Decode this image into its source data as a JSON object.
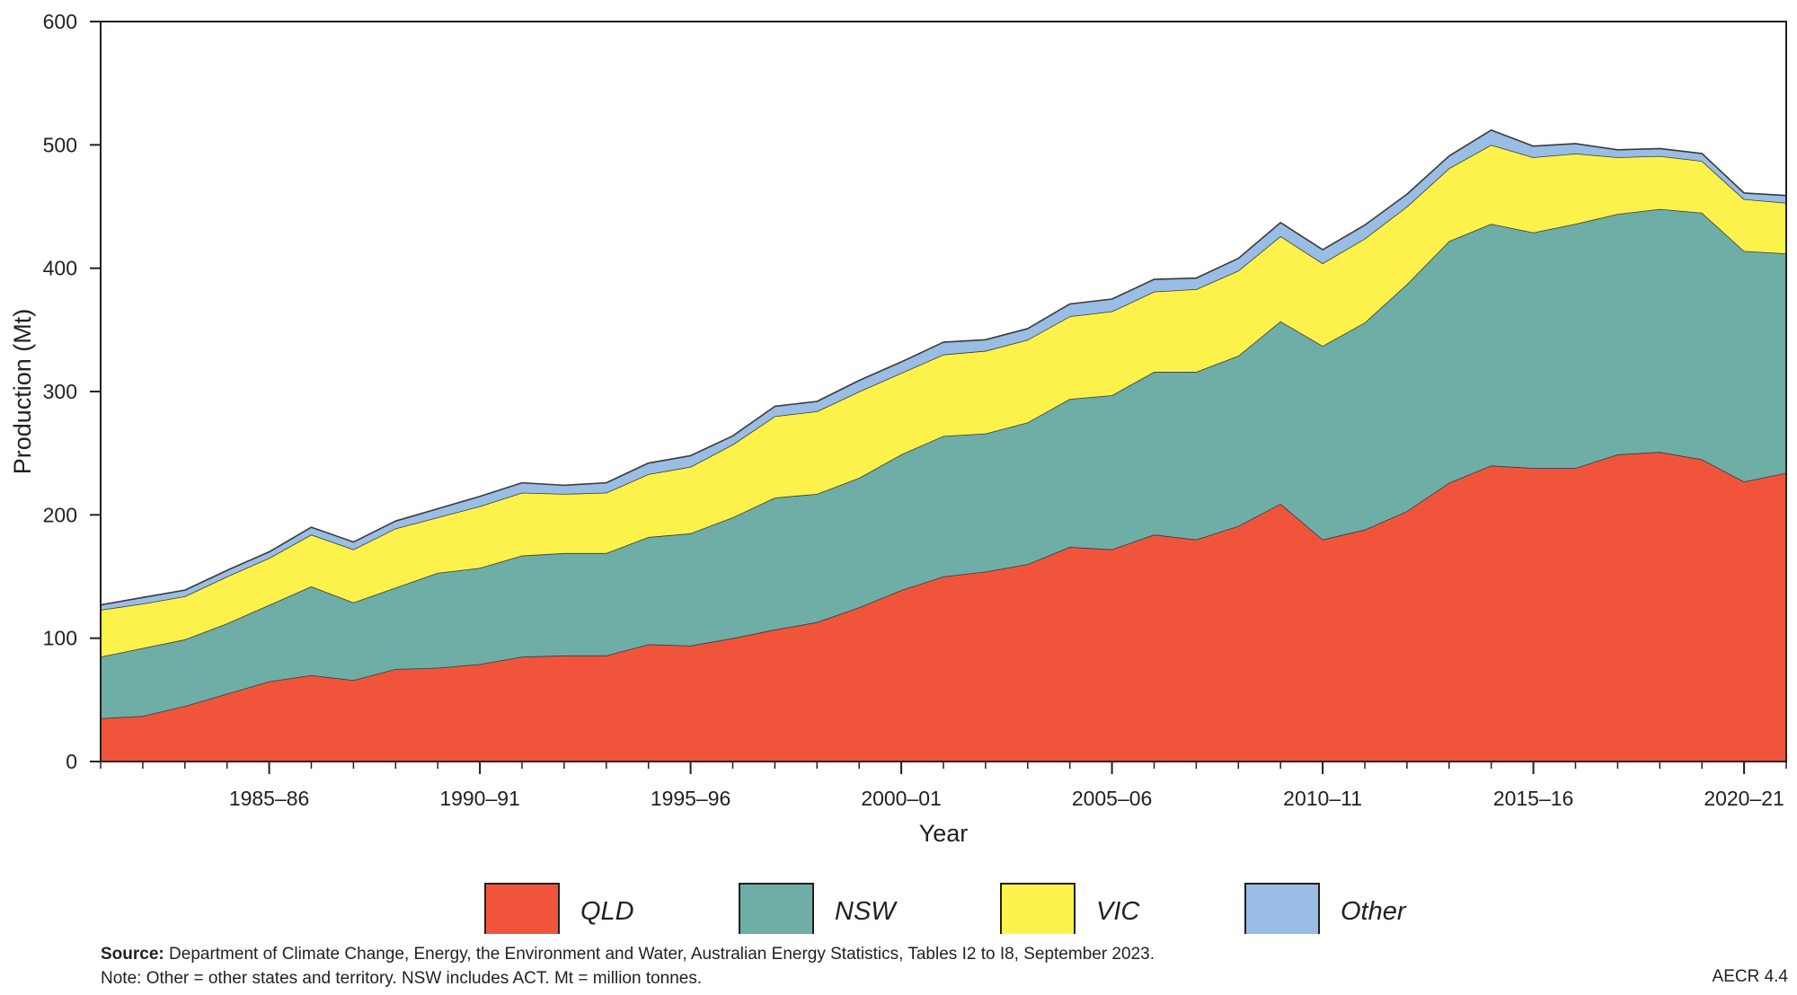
{
  "chart_data": {
    "type": "area",
    "stacked": true,
    "xlabel": "Year",
    "ylabel": "Production (Mt)",
    "ylim": [
      0,
      600
    ],
    "yticks": [
      0,
      100,
      200,
      300,
      400,
      500,
      600
    ],
    "years": [
      "1981–82",
      "1982–83",
      "1983–84",
      "1984–85",
      "1985–86",
      "1986–87",
      "1987–88",
      "1988–89",
      "1989–90",
      "1990–91",
      "1991–92",
      "1992–93",
      "1993–94",
      "1994–95",
      "1995–96",
      "1996–97",
      "1997–98",
      "1998–99",
      "1999–00",
      "2000–01",
      "2001–02",
      "2002–03",
      "2003–04",
      "2004–05",
      "2005–06",
      "2006–07",
      "2007–08",
      "2008–09",
      "2009–10",
      "2010–11",
      "2011–12",
      "2012–13",
      "2013–14",
      "2014–15",
      "2015–16",
      "2016–17",
      "2017–18",
      "2018–19",
      "2019–20",
      "2020–21",
      "2021–22"
    ],
    "xtick_labels": [
      "1985–86",
      "1990–91",
      "1995–96",
      "2000–01",
      "2005–06",
      "2010–11",
      "2015–16",
      "2020–21"
    ],
    "series": [
      {
        "name": "QLD",
        "color": "#f0553b",
        "values": [
          35,
          37,
          45,
          55,
          65,
          70,
          66,
          75,
          76,
          79,
          85,
          86,
          86,
          95,
          94,
          100,
          107,
          113,
          125,
          139,
          150,
          154,
          160,
          174,
          172,
          184,
          180,
          191,
          209,
          180,
          188,
          203,
          226,
          240,
          238,
          238,
          249,
          251,
          245,
          227,
          234
        ]
      },
      {
        "name": "NSW",
        "color": "#6fada7",
        "values": [
          50,
          55,
          54,
          57,
          62,
          72,
          63,
          66,
          77,
          78,
          82,
          83,
          83,
          87,
          91,
          98,
          107,
          104,
          105,
          110,
          114,
          112,
          115,
          120,
          125,
          132,
          136,
          138,
          148,
          157,
          168,
          184,
          196,
          196,
          191,
          198,
          195,
          197,
          200,
          187,
          178
        ]
      },
      {
        "name": "VIC",
        "color": "#fcf24b",
        "values": [
          38,
          36,
          35,
          38,
          38,
          42,
          43,
          48,
          45,
          50,
          51,
          48,
          49,
          51,
          54,
          59,
          66,
          67,
          70,
          66,
          66,
          67,
          67,
          67,
          68,
          65,
          67,
          69,
          69,
          67,
          68,
          63,
          59,
          64,
          61,
          57,
          46,
          43,
          42,
          42,
          41
        ]
      },
      {
        "name": "Other",
        "color": "#99bde4",
        "values": [
          4,
          5,
          5,
          5,
          5,
          6,
          6,
          6,
          7,
          8,
          8,
          7,
          8,
          9,
          9,
          7,
          8,
          8,
          9,
          9,
          10,
          9,
          9,
          10,
          10,
          10,
          9,
          10,
          11,
          11,
          11,
          10,
          10,
          12,
          9,
          8,
          6,
          6,
          6,
          5,
          6
        ]
      }
    ],
    "legend_position": "bottom"
  },
  "footer": {
    "source_label": "Source:",
    "source_text": " Department of Climate Change, Energy, the Environment and Water, Australian Energy Statistics, Tables I2 to I8, September 2023.",
    "note": "Note:  Other = other states and territory. NSW includes ACT. Mt = million tonnes.",
    "figure_id": "AECR 4.4"
  }
}
